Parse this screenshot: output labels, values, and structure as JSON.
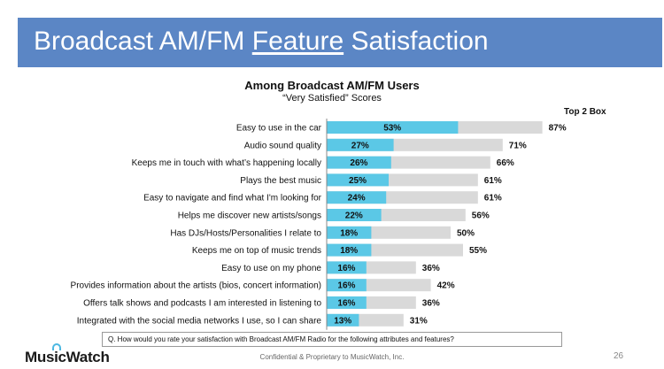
{
  "title": {
    "pre": "Broadcast AM/FM ",
    "underlined": "Feature",
    "post": " Satisfaction"
  },
  "chart_title": "Among Broadcast AM/FM Users",
  "chart_subtitle": "“Very Satisfied” Scores",
  "top2_label": "Top 2 Box",
  "question": "Q. How would you rate your satisfaction with Broadcast AM/FM Radio for the following attributes and features?",
  "logo": "MusicWatch",
  "footer": "Confidential & Proprietary to MusicWatch, Inc.",
  "page_number": "26",
  "colors": {
    "very_satisfied": "#5bc8e6",
    "top2": "#d9d9d9",
    "title_bar": "#5b86c5"
  },
  "chart_data": {
    "type": "bar",
    "orientation": "horizontal",
    "categories": [
      "Easy to use in the car",
      "Audio sound quality",
      "Keeps me in touch with what’s happening locally",
      "Plays the best music",
      "Easy to navigate and find what I'm looking for",
      "Helps me discover new artists/songs",
      "Has DJs/Hosts/Personalities I relate to",
      "Keeps me on top of music trends",
      "Easy to use on my phone",
      "Provides information about the artists (bios, concert information)",
      "Offers talk shows and podcasts I am interested in listening to",
      "Integrated with the social media networks I use, so I can share"
    ],
    "series": [
      {
        "name": "“Very Satisfied” Scores",
        "values": [
          53,
          27,
          26,
          25,
          24,
          22,
          18,
          18,
          16,
          16,
          16,
          13
        ]
      },
      {
        "name": "Top 2 Box",
        "values": [
          87,
          71,
          66,
          61,
          61,
          56,
          50,
          55,
          36,
          42,
          36,
          31
        ]
      }
    ],
    "unit": "%",
    "xlim": [
      0,
      100
    ]
  }
}
